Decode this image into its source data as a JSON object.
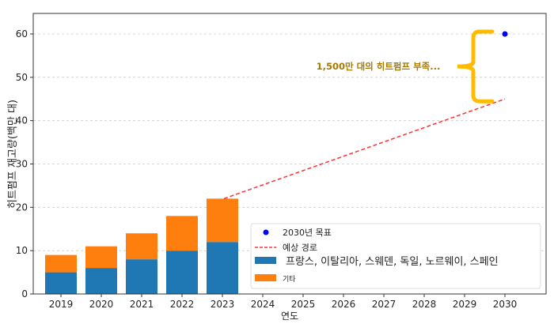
{
  "chart_data": {
    "type": "bar",
    "title": "",
    "xlabel": "연도",
    "ylabel": "히트펌프 재고량(백만 대)",
    "ylim": [
      0,
      65
    ],
    "yticks": [
      0,
      10,
      20,
      30,
      40,
      50,
      60
    ],
    "categories": [
      "2019",
      "2020",
      "2021",
      "2022",
      "2023",
      "2024",
      "2025",
      "2026",
      "2027",
      "2028",
      "2029",
      "2030"
    ],
    "grid": "horizontal dashed",
    "series": [
      {
        "name": "프랑스, 이탈리아, 스웨덴, 독일, 노르웨이, 스페인",
        "type": "bar",
        "color": "#1f77b4",
        "values": [
          5,
          6,
          8,
          10,
          12,
          null,
          null,
          null,
          null,
          null,
          null,
          null
        ]
      },
      {
        "name": "기타",
        "type": "bar-stacked",
        "color": "#ff7f0e",
        "values": [
          4,
          5,
          6,
          8,
          10,
          null,
          null,
          null,
          null,
          null,
          null,
          null
        ]
      },
      {
        "name": "예상 경로",
        "type": "line-dashed",
        "color": "#ff3333",
        "points": [
          [
            "2023",
            22
          ],
          [
            "2030",
            45
          ]
        ]
      },
      {
        "name": "2030년 목표",
        "type": "scatter",
        "color": "#0000ff",
        "points": [
          [
            "2030",
            60
          ]
        ]
      }
    ],
    "legend_position": "lower-right",
    "annotation": {
      "text": "1,500만 대의 히트펌프 부족...",
      "color": "#a87a00",
      "brace_color": "#ffbb00",
      "range": [
        45,
        60
      ]
    }
  }
}
